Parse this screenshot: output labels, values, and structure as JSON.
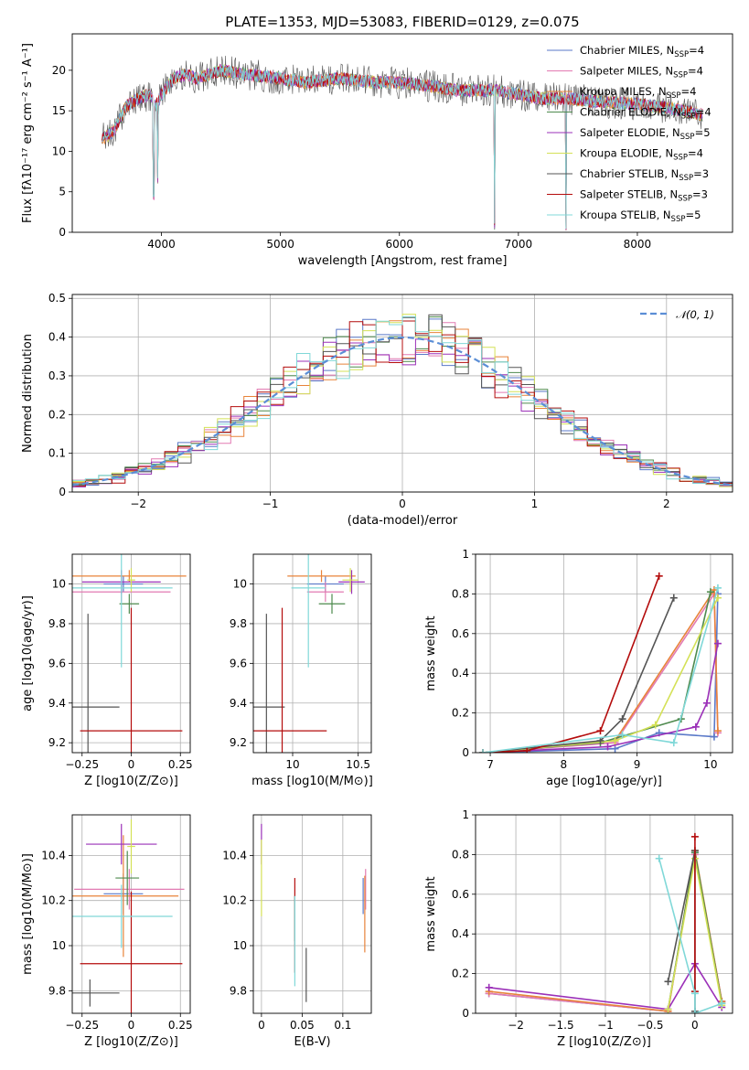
{
  "figure": {
    "title": "PLATE=1353, MJD=53083, FIBERID=0129, z=0.075"
  },
  "palette": [
    {
      "name": "Chabrier MILES",
      "nssp": "4",
      "color": "#5a79c8"
    },
    {
      "name": "Salpeter MILES",
      "nssp": "4",
      "color": "#e27ab2"
    },
    {
      "name": "Kroupa MILES",
      "nssp": "4",
      "color": "#e8833a"
    },
    {
      "name": "Chabrier ELODIE",
      "nssp": "4",
      "color": "#4e8a4e"
    },
    {
      "name": "Salpeter ELODIE",
      "nssp": "5",
      "color": "#9b30b8"
    },
    {
      "name": "Kroupa ELODIE",
      "nssp": "4",
      "color": "#d4e157"
    },
    {
      "name": "Chabrier STELIB",
      "nssp": "3",
      "color": "#555555"
    },
    {
      "name": "Salpeter STELIB",
      "nssp": "3",
      "color": "#b40c0c"
    },
    {
      "name": "Kroupa STELIB",
      "nssp": "5",
      "color": "#80d8d8"
    }
  ],
  "chart_data": [
    {
      "id": "spectrum",
      "type": "line",
      "xlabel": "wavelength [Angstrom, rest frame]",
      "ylabel": "Flux [fλ10⁻¹⁷ erg cm⁻² s⁻¹ A⁻¹]",
      "xlim": [
        3250,
        8800
      ],
      "ylim": [
        0,
        24.5
      ],
      "xticks": [
        4000,
        5000,
        6000,
        7000,
        8000
      ],
      "yticks": [
        0,
        5,
        10,
        15,
        20
      ],
      "grid": false,
      "legend": "top-right",
      "continuum": {
        "x": [
          3500,
          3600,
          3700,
          3800,
          3900,
          3950,
          4000,
          4100,
          4200,
          4300,
          4400,
          4500,
          4700,
          5000,
          5200,
          5500,
          5800,
          6000,
          6300,
          6500,
          6800,
          7000,
          7200,
          7400,
          7600,
          7800,
          8000,
          8200,
          8400,
          8550
        ],
        "y": [
          11.5,
          12.5,
          15.5,
          16.5,
          17.0,
          15.5,
          17.0,
          19.0,
          19.5,
          19.0,
          19.5,
          20.0,
          19.5,
          19.0,
          18.5,
          19.0,
          18.5,
          18.5,
          18.0,
          17.5,
          17.5,
          17.0,
          16.5,
          16.5,
          16.2,
          16.0,
          15.8,
          15.5,
          15.0,
          14.5
        ]
      },
      "dips": [
        {
          "x": 3934,
          "y": 4.0
        },
        {
          "x": 3968,
          "y": 6.0
        },
        {
          "x": 6800,
          "y": 0.3
        },
        {
          "x": 7400,
          "y": 0.0
        }
      ]
    },
    {
      "id": "residuals",
      "type": "histogram",
      "xlabel": "(data-model)/error",
      "ylabel": "Normed distribution",
      "xlim": [
        -2.5,
        2.5
      ],
      "ylim": [
        0,
        0.51
      ],
      "xticks": [
        -2,
        -1,
        0,
        1,
        2
      ],
      "yticks": [
        0.0,
        0.1,
        0.2,
        0.3,
        0.4,
        0.5
      ],
      "grid": true,
      "legend": "top-right",
      "reference_label": "𝒩(0, 1)",
      "reference": {
        "type": "normal",
        "mean": 0,
        "sigma": 1
      }
    },
    {
      "id": "age-vs-z",
      "type": "errorbar",
      "xlabel": "Z [log10(Z/Z⊙)]",
      "ylabel": "age  [log10(age/yr)]",
      "xlim": [
        -0.3,
        0.3
      ],
      "ylim": [
        9.15,
        10.15
      ],
      "xticks": [
        -0.25,
        0.0,
        0.25
      ],
      "yticks": [
        9.2,
        9.4,
        9.6,
        9.8,
        10.0
      ],
      "grid": true,
      "points": [
        {
          "series": 0,
          "x": -0.04,
          "xerr": 0.1,
          "y": 10.0,
          "yerr": 0.04
        },
        {
          "series": 1,
          "x": -0.05,
          "xerr": 0.25,
          "y": 9.96,
          "yerr": 0.05
        },
        {
          "series": 2,
          "x": -0.01,
          "xerr": 0.29,
          "y": 10.04,
          "yerr": 0.03
        },
        {
          "series": 3,
          "x": -0.01,
          "xerr": 0.05,
          "y": 9.9,
          "yerr": 0.05
        },
        {
          "series": 4,
          "x": -0.05,
          "xerr": 0.2,
          "y": 10.01,
          "yerr": 0.06
        },
        {
          "series": 5,
          "x": 0.0,
          "xerr": 0.02,
          "y": 10.02,
          "yerr": 0.06
        },
        {
          "series": 6,
          "x": -0.22,
          "xerr": 0.16,
          "y": 9.38,
          "yerr": 0.47
        },
        {
          "series": 7,
          "x": 0.0,
          "xerr": 0.26,
          "y": 9.26,
          "yerr": 0.62
        },
        {
          "series": 8,
          "x": -0.05,
          "xerr": 0.26,
          "y": 9.98,
          "yerr": 0.4
        }
      ]
    },
    {
      "id": "age-vs-mass",
      "type": "errorbar",
      "xlabel": "mass [log10(M/M⊙)]",
      "ylabel": "",
      "xlim": [
        9.7,
        10.6
      ],
      "ylim": [
        9.15,
        10.15
      ],
      "xticks": [
        10.0,
        10.5
      ],
      "yticks": [
        9.2,
        9.4,
        9.6,
        9.8,
        10.0
      ],
      "grid": true,
      "points": [
        {
          "series": 0,
          "x": 10.25,
          "xerr": 0.14,
          "y": 10.0,
          "yerr": 0.04
        },
        {
          "series": 1,
          "x": 10.25,
          "xerr": 0.14,
          "y": 9.96,
          "yerr": 0.05
        },
        {
          "series": 2,
          "x": 10.22,
          "xerr": 0.26,
          "y": 10.04,
          "yerr": 0.03
        },
        {
          "series": 3,
          "x": 10.3,
          "xerr": 0.1,
          "y": 9.9,
          "yerr": 0.05
        },
        {
          "series": 4,
          "x": 10.45,
          "xerr": 0.1,
          "y": 10.01,
          "yerr": 0.06
        },
        {
          "series": 5,
          "x": 10.44,
          "xerr": 0.06,
          "y": 10.02,
          "yerr": 0.06
        },
        {
          "series": 6,
          "x": 9.8,
          "xerr": 0.14,
          "y": 9.38,
          "yerr": 0.47
        },
        {
          "series": 7,
          "x": 9.92,
          "xerr": 0.34,
          "y": 9.26,
          "yerr": 0.62
        },
        {
          "series": 8,
          "x": 10.12,
          "xerr": 0.13,
          "y": 9.98,
          "yerr": 0.4
        }
      ]
    },
    {
      "id": "weight-vs-age",
      "type": "line",
      "xlabel": "age  [log10(age/yr)]",
      "ylabel": "mass weight",
      "xlim": [
        6.8,
        10.3
      ],
      "ylim": [
        0,
        1.0
      ],
      "xticks": [
        7,
        8,
        9,
        10
      ],
      "yticks": [
        0.0,
        0.2,
        0.4,
        0.6,
        0.8,
        1.0
      ],
      "grid": true,
      "series": [
        {
          "series": 0,
          "x": [
            6.9,
            8.7,
            9.3,
            10.05,
            10.1
          ],
          "y": [
            0.0,
            0.02,
            0.1,
            0.08,
            0.8
          ]
        },
        {
          "series": 1,
          "x": [
            6.9,
            8.7,
            10.05,
            10.1
          ],
          "y": [
            0.0,
            0.05,
            0.8,
            0.1
          ]
        },
        {
          "series": 2,
          "x": [
            6.9,
            8.7,
            10.05,
            10.1
          ],
          "y": [
            0.0,
            0.06,
            0.82,
            0.11
          ]
        },
        {
          "series": 3,
          "x": [
            6.9,
            8.5,
            9.6,
            10.0
          ],
          "y": [
            0.0,
            0.05,
            0.17,
            0.81
          ]
        },
        {
          "series": 4,
          "x": [
            6.9,
            8.6,
            9.8,
            9.95,
            10.1
          ],
          "y": [
            0.0,
            0.03,
            0.13,
            0.25,
            0.55
          ]
        },
        {
          "series": 5,
          "x": [
            6.9,
            8.7,
            9.25,
            10.1
          ],
          "y": [
            0.0,
            0.06,
            0.14,
            0.78
          ]
        },
        {
          "series": 6,
          "x": [
            6.9,
            8.5,
            8.8,
            9.5
          ],
          "y": [
            0.0,
            0.06,
            0.17,
            0.78
          ]
        },
        {
          "series": 7,
          "x": [
            6.9,
            7.5,
            8.5,
            9.3
          ],
          "y": [
            0.0,
            0.01,
            0.11,
            0.89
          ]
        },
        {
          "series": 8,
          "x": [
            6.9,
            8.8,
            9.5,
            10.1
          ],
          "y": [
            0.0,
            0.09,
            0.05,
            0.83
          ]
        }
      ]
    },
    {
      "id": "mass-vs-z",
      "type": "errorbar",
      "xlabel": "Z [log10(Z/Z⊙)]",
      "ylabel": "mass [log10(M/M⊙)]",
      "xlim": [
        -0.3,
        0.3
      ],
      "ylim": [
        9.7,
        10.58
      ],
      "xticks": [
        -0.25,
        0.0,
        0.25
      ],
      "yticks": [
        9.8,
        10.0,
        10.2,
        10.4
      ],
      "grid": true,
      "points": [
        {
          "series": 0,
          "x": -0.04,
          "xerr": 0.1,
          "y": 10.23,
          "yerr": 0.09
        },
        {
          "series": 1,
          "x": -0.01,
          "xerr": 0.28,
          "y": 10.25,
          "yerr": 0.09
        },
        {
          "series": 2,
          "x": -0.04,
          "xerr": 0.28,
          "y": 10.22,
          "yerr": 0.27
        },
        {
          "series": 3,
          "x": -0.02,
          "xerr": 0.06,
          "y": 10.3,
          "yerr": 0.12
        },
        {
          "series": 4,
          "x": -0.05,
          "xerr": 0.18,
          "y": 10.45,
          "yerr": 0.09
        },
        {
          "series": 5,
          "x": 0.0,
          "xerr": 0.02,
          "y": 10.44,
          "yerr": 0.12
        },
        {
          "series": 6,
          "x": -0.21,
          "xerr": 0.15,
          "y": 9.79,
          "yerr": 0.06
        },
        {
          "series": 7,
          "x": 0.0,
          "xerr": 0.26,
          "y": 9.92,
          "yerr": 0.32
        },
        {
          "series": 8,
          "x": -0.05,
          "xerr": 0.26,
          "y": 10.13,
          "yerr": 0.14
        }
      ]
    },
    {
      "id": "mass-vs-ebv",
      "type": "errorbar",
      "xlabel": "E(B-V)",
      "ylabel": "",
      "xlim": [
        -0.01,
        0.135
      ],
      "ylim": [
        9.7,
        10.58
      ],
      "xticks": [
        0.0,
        0.05,
        0.1
      ],
      "yticks": [
        9.8,
        10.0,
        10.2,
        10.4
      ],
      "grid": true,
      "points": [
        {
          "series": 0,
          "x": 0.125,
          "xerr": 0.0,
          "y": 10.22,
          "yerr": 0.08
        },
        {
          "series": 1,
          "x": 0.128,
          "xerr": 0.0,
          "y": 10.25,
          "yerr": 0.09
        },
        {
          "series": 2,
          "x": 0.127,
          "xerr": 0.0,
          "y": 10.14,
          "yerr": 0.17
        },
        {
          "series": 3,
          "x": 0.041,
          "xerr": 0.0,
          "y": 10.12,
          "yerr": 0.1
        },
        {
          "series": 4,
          "x": 0.0,
          "xerr": 0.0,
          "y": 10.45,
          "yerr": 0.09
        },
        {
          "series": 5,
          "x": 0.0,
          "xerr": 0.0,
          "y": 10.3,
          "yerr": 0.17
        },
        {
          "series": 6,
          "x": 0.055,
          "xerr": 0.0,
          "y": 9.87,
          "yerr": 0.12
        },
        {
          "series": 7,
          "x": 0.041,
          "xerr": 0.0,
          "y": 10.09,
          "yerr": 0.21
        },
        {
          "series": 8,
          "x": 0.041,
          "xerr": 0.0,
          "y": 10.02,
          "yerr": 0.2
        }
      ]
    },
    {
      "id": "weight-vs-z",
      "type": "line",
      "xlabel": "Z [log10(Z/Z⊙)]",
      "ylabel": "mass weight",
      "xlim": [
        -2.45,
        0.42
      ],
      "ylim": [
        0,
        1.0
      ],
      "xticks": [
        -2.0,
        -1.5,
        -1.0,
        -0.5,
        0.0
      ],
      "yticks": [
        0.0,
        0.2,
        0.4,
        0.6,
        0.8,
        1.0
      ],
      "grid": true,
      "series": [
        {
          "series": 0,
          "x": [
            -2.3,
            -0.3,
            0.0,
            0.3
          ],
          "y": [
            0.1,
            0.01,
            0.81,
            0.06
          ]
        },
        {
          "series": 1,
          "x": [
            -2.3,
            -0.3,
            0.0,
            0.3
          ],
          "y": [
            0.1,
            0.01,
            0.8,
            0.06
          ]
        },
        {
          "series": 2,
          "x": [
            -2.3,
            -0.3,
            0.0,
            0.3
          ],
          "y": [
            0.11,
            0.01,
            0.82,
            0.06
          ]
        },
        {
          "series": 3,
          "x": [
            -0.3,
            0.0,
            0.3
          ],
          "y": [
            0.02,
            0.81,
            0.05
          ]
        },
        {
          "series": 4,
          "x": [
            -2.3,
            -0.3,
            0.0,
            0.3
          ],
          "y": [
            0.13,
            0.02,
            0.25,
            0.03
          ]
        },
        {
          "series": 5,
          "x": [
            -0.3,
            0.0,
            0.3
          ],
          "y": [
            0.02,
            0.78,
            0.04
          ]
        },
        {
          "series": 6,
          "x": [
            -0.3,
            0.0,
            0.0
          ],
          "y": [
            0.16,
            0.82,
            0.01
          ]
        },
        {
          "series": 7,
          "x": [
            0.0,
            0.0
          ],
          "y": [
            0.89,
            0.11
          ]
        },
        {
          "series": 8,
          "x": [
            -0.4,
            0.0,
            0.0,
            0.3
          ],
          "y": [
            0.78,
            0.1,
            0.0,
            0.05
          ]
        }
      ]
    }
  ]
}
